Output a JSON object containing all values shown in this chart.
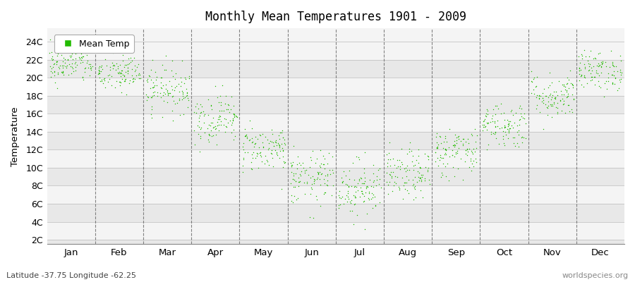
{
  "title": "Monthly Mean Temperatures 1901 - 2009",
  "ylabel": "Temperature",
  "subtitle_left": "Latitude -37.75 Longitude -62.25",
  "subtitle_right": "worldspecies.org",
  "legend_label": "Mean Temp",
  "dot_color": "#22bb00",
  "bg_dark": "#e8e8e8",
  "bg_light": "#f4f4f4",
  "months": [
    "Jan",
    "Feb",
    "Mar",
    "Apr",
    "May",
    "Jun",
    "Jul",
    "Aug",
    "Sep",
    "Oct",
    "Nov",
    "Dec"
  ],
  "month_means": [
    21.5,
    20.5,
    18.8,
    15.5,
    12.2,
    8.8,
    7.8,
    9.2,
    11.8,
    14.8,
    18.0,
    20.8
  ],
  "month_stds": [
    1.0,
    1.1,
    1.3,
    1.4,
    1.3,
    1.5,
    1.6,
    1.4,
    1.4,
    1.3,
    1.3,
    1.1
  ],
  "n_years": 109,
  "ylim": [
    1.5,
    25.5
  ],
  "ytick_values": [
    2,
    4,
    6,
    8,
    10,
    12,
    14,
    16,
    18,
    20,
    22,
    24
  ],
  "ytick_labels": [
    "2C",
    "4C",
    "6C",
    "8C",
    "10C",
    "12C",
    "14C",
    "16C",
    "18C",
    "20C",
    "22C",
    "24C"
  ],
  "seed": 42
}
